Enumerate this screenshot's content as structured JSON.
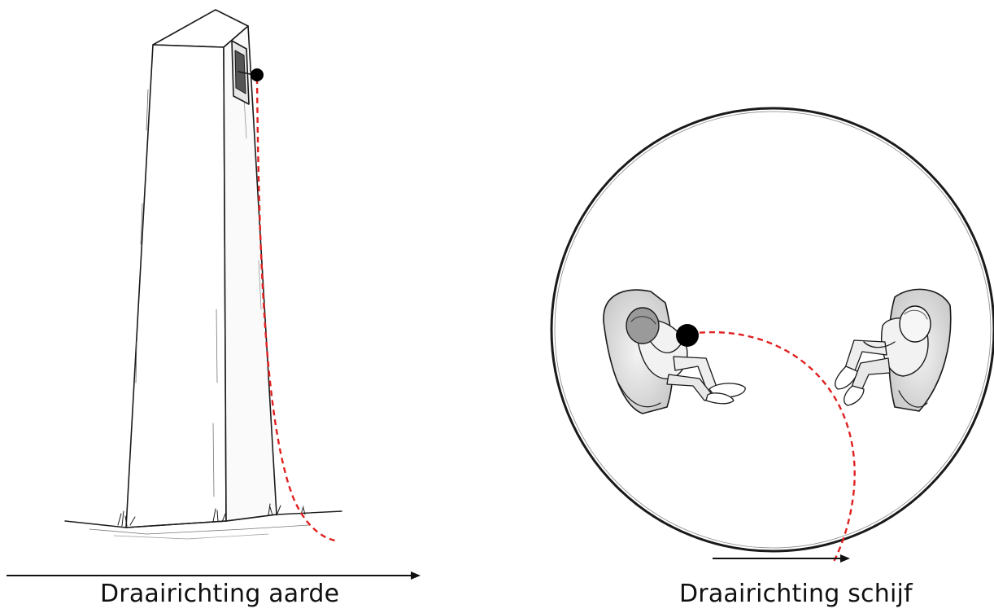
{
  "panels": {
    "left": {
      "caption": "Draairichting aarde"
    },
    "right": {
      "caption": "Draairichting schijf"
    }
  },
  "colors": {
    "trajectory": "#e02020",
    "ink": "#1a1a1a",
    "ball": "#000000"
  },
  "icons": {
    "tower": "tower-drawing",
    "disk": "rotating-disk",
    "person_a": "seated-person-with-ball",
    "person_b": "seated-person"
  }
}
